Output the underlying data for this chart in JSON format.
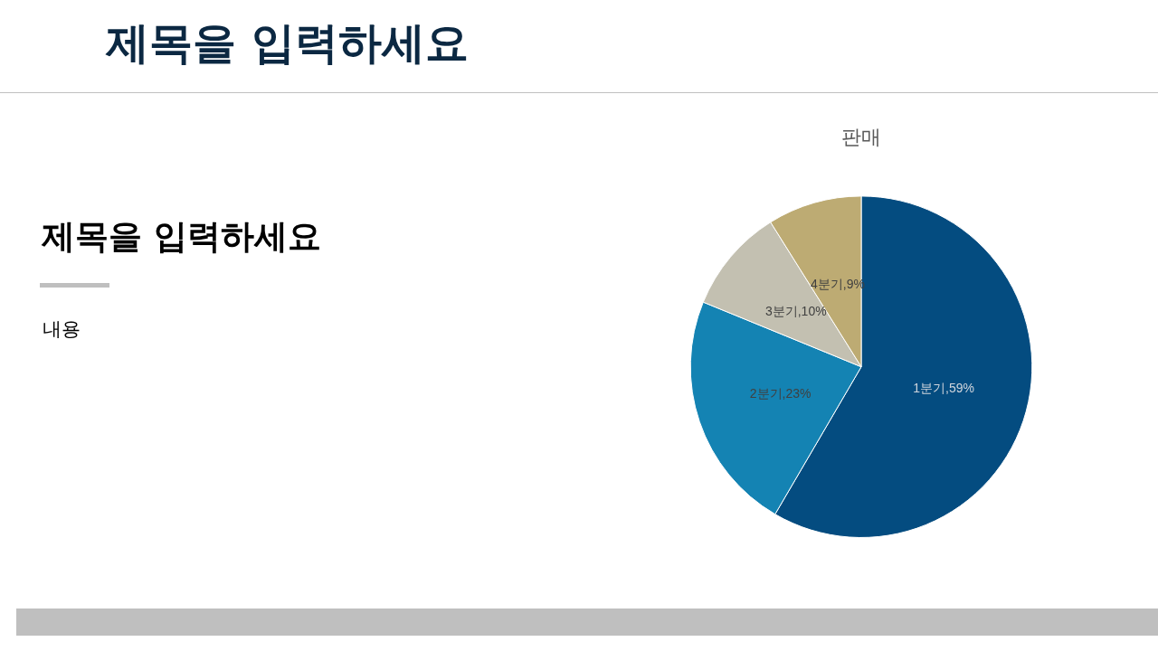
{
  "chart_data": {
    "type": "pie",
    "title": "판매",
    "categories": [
      "1분기",
      "2분기",
      "3분기",
      "4분기"
    ],
    "values": [
      59,
      23,
      10,
      9
    ],
    "value_labels": [
      "59%",
      "23%",
      "10%",
      "9%"
    ],
    "colors": [
      "#044c80",
      "#1483b3",
      "#c3c0b1",
      "#bdab73"
    ],
    "annotations": [
      "제목을 입력하세요",
      "제목을 입력하세요",
      "내용"
    ]
  }
}
